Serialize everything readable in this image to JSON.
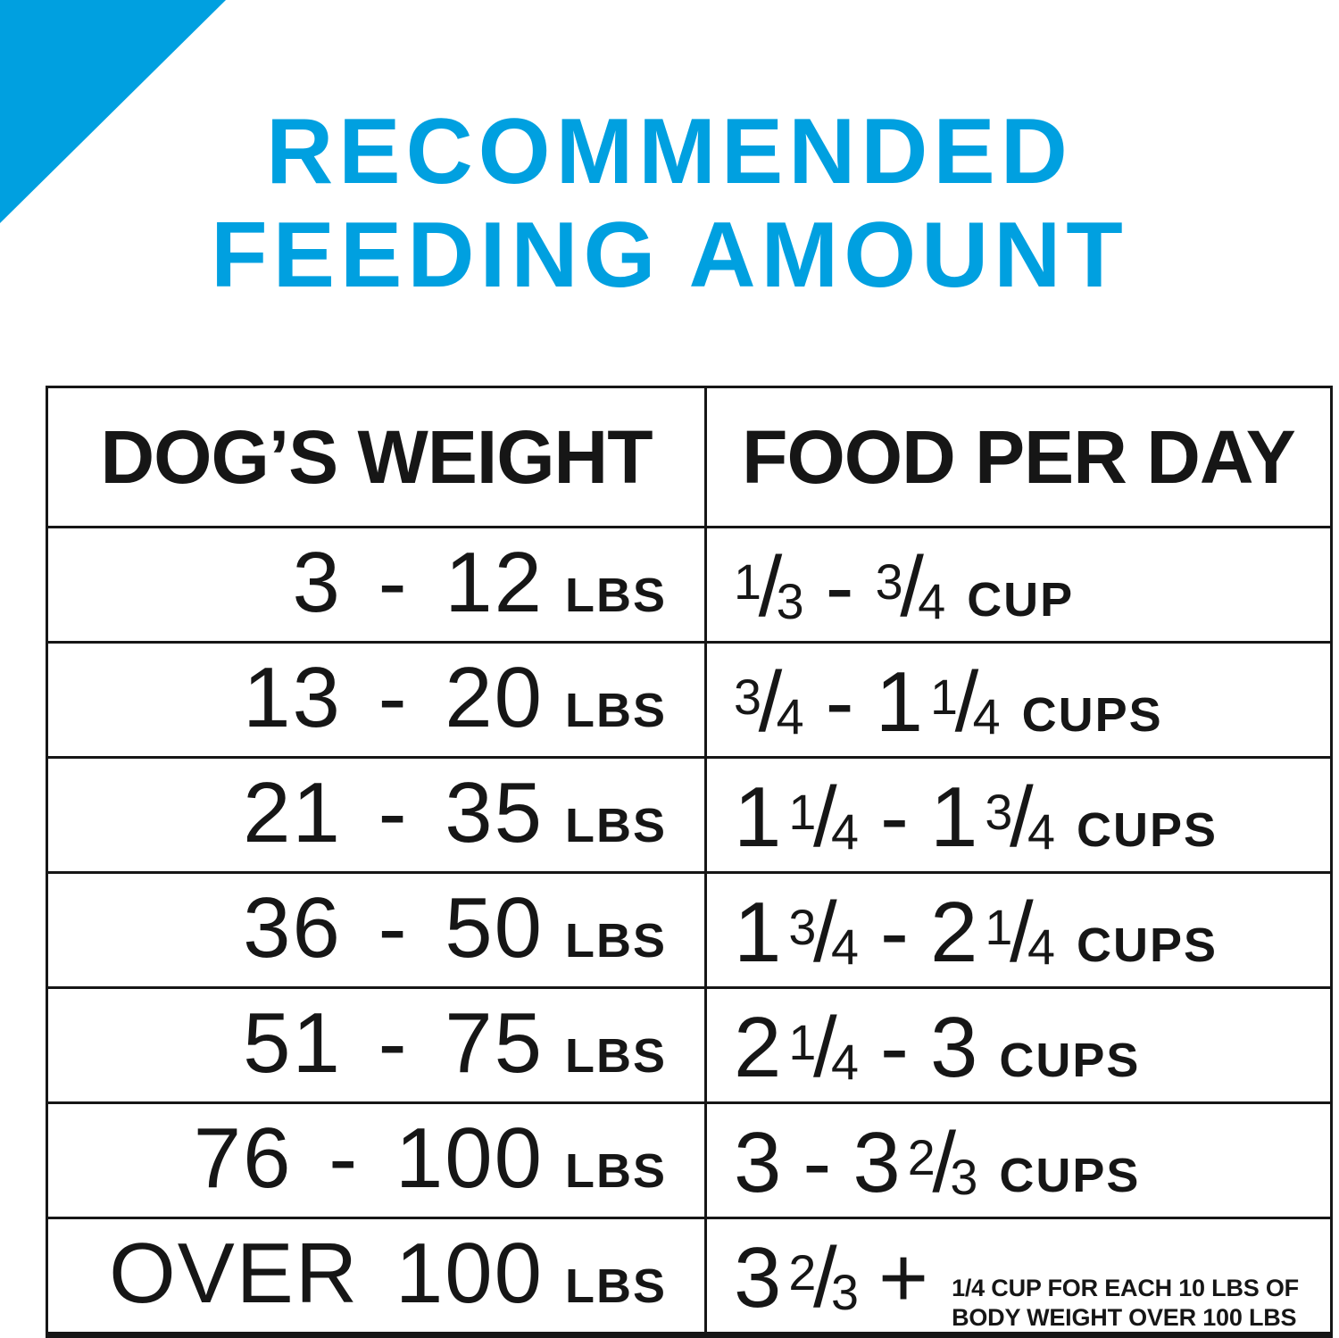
{
  "colors": {
    "accent_blue": "#00A0E0",
    "text_black": "#161616",
    "background": "#FFFFFF"
  },
  "title": {
    "line1": "RECOMMENDED",
    "line2": "FEEDING AMOUNT"
  },
  "glyphs": {
    "dash": "-",
    "plus": "+",
    "slash": "/"
  },
  "table": {
    "headers": [
      "DOG’S WEIGHT",
      "FOOD PER DAY"
    ],
    "rows": [
      {
        "weight": "3 - 12",
        "weight_unit": "LBS",
        "food": [
          [
            "frac",
            "1",
            "3"
          ],
          [
            "dash"
          ],
          [
            "frac",
            "3",
            "4"
          ]
        ],
        "food_unit": "CUP"
      },
      {
        "weight": "13 - 20",
        "weight_unit": "LBS",
        "food": [
          [
            "frac",
            "3",
            "4"
          ],
          [
            "dash"
          ],
          [
            "num",
            "1"
          ],
          [
            "frac",
            "1",
            "4"
          ]
        ],
        "food_unit": "CUPS"
      },
      {
        "weight": "21 - 35",
        "weight_unit": "LBS",
        "food": [
          [
            "num",
            "1"
          ],
          [
            "frac",
            "1",
            "4"
          ],
          [
            "dash"
          ],
          [
            "num",
            "1"
          ],
          [
            "frac",
            "3",
            "4"
          ]
        ],
        "food_unit": "CUPS"
      },
      {
        "weight": "36 - 50",
        "weight_unit": "LBS",
        "food": [
          [
            "num",
            "1"
          ],
          [
            "frac",
            "3",
            "4"
          ],
          [
            "dash"
          ],
          [
            "num",
            "2"
          ],
          [
            "frac",
            "1",
            "4"
          ]
        ],
        "food_unit": "CUPS"
      },
      {
        "weight": "51 - 75",
        "weight_unit": "LBS",
        "food": [
          [
            "num",
            "2"
          ],
          [
            "frac",
            "1",
            "4"
          ],
          [
            "dash"
          ],
          [
            "num",
            "3"
          ]
        ],
        "food_unit": "CUPS"
      },
      {
        "weight": "76 - 100",
        "weight_unit": "LBS",
        "food": [
          [
            "num",
            "3"
          ],
          [
            "dash"
          ],
          [
            "num",
            "3"
          ],
          [
            "frac",
            "2",
            "3"
          ]
        ],
        "food_unit": "CUPS"
      },
      {
        "weight": "OVER 100",
        "weight_unit": "LBS",
        "food": [
          [
            "num",
            "3"
          ],
          [
            "frac",
            "2",
            "3"
          ],
          [
            "plus"
          ]
        ],
        "food_unit": "",
        "note": [
          "1/4 CUP FOR EACH 10 LBS OF",
          "BODY WEIGHT OVER 100 LBS"
        ]
      }
    ]
  }
}
